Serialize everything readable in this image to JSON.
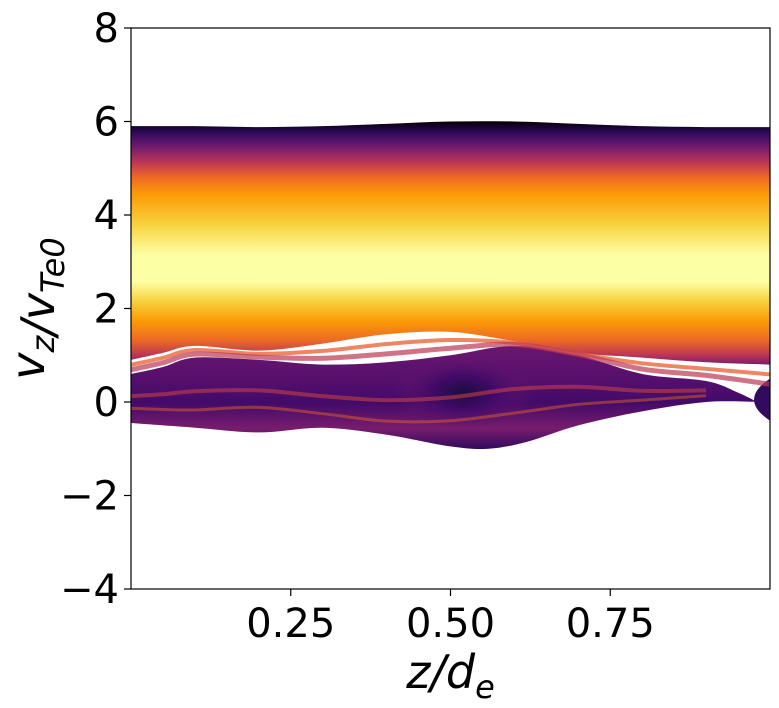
{
  "chart_data": {
    "type": "heatmap",
    "title": "",
    "xlabel": "z/d_e",
    "ylabel": "v_z/v_Te0",
    "xlim": [
      0.0,
      1.0
    ],
    "ylim": [
      -4,
      8
    ],
    "xticks": [
      0.25,
      0.5,
      0.75
    ],
    "xtick_labels": [
      "0.25",
      "0.50",
      "0.75"
    ],
    "yticks": [
      -4,
      -2,
      0,
      2,
      4,
      6,
      8
    ],
    "ytick_labels": [
      "−4",
      "−2",
      "0",
      "2",
      "4",
      "6",
      "8"
    ],
    "colormap": "inferno",
    "grid": false,
    "legend": "none",
    "colors": {
      "background": "#ffffff",
      "axis": "#000000"
    },
    "main_beam": {
      "center_vz": 3.2,
      "upper_edge_vz": [
        [
          0.0,
          5.9
        ],
        [
          0.1,
          5.9
        ],
        [
          0.2,
          5.88
        ],
        [
          0.3,
          5.9
        ],
        [
          0.4,
          5.95
        ],
        [
          0.5,
          6.0
        ],
        [
          0.6,
          6.0
        ],
        [
          0.7,
          5.95
        ],
        [
          0.8,
          5.9
        ],
        [
          0.9,
          5.88
        ],
        [
          1.0,
          5.88
        ]
      ],
      "lower_edge_vz": [
        [
          0.0,
          0.9
        ],
        [
          0.05,
          1.05
        ],
        [
          0.1,
          1.2
        ],
        [
          0.2,
          1.1
        ],
        [
          0.3,
          1.25
        ],
        [
          0.4,
          1.45
        ],
        [
          0.5,
          1.5
        ],
        [
          0.6,
          1.3
        ],
        [
          0.7,
          1.05
        ],
        [
          0.8,
          0.95
        ],
        [
          0.9,
          0.85
        ],
        [
          1.0,
          0.8
        ]
      ]
    },
    "cold_population": {
      "upper_edge_vz": [
        [
          0.0,
          0.6
        ],
        [
          0.05,
          0.75
        ],
        [
          0.1,
          0.95
        ],
        [
          0.2,
          0.9
        ],
        [
          0.3,
          0.8
        ],
        [
          0.4,
          0.85
        ],
        [
          0.5,
          1.0
        ],
        [
          0.6,
          1.2
        ],
        [
          0.7,
          1.0
        ],
        [
          0.8,
          0.6
        ],
        [
          0.9,
          0.45
        ],
        [
          0.95,
          0.2
        ],
        [
          0.98,
          0.0
        ]
      ],
      "lower_edge_vz": [
        [
          0.0,
          -0.45
        ],
        [
          0.1,
          -0.55
        ],
        [
          0.2,
          -0.65
        ],
        [
          0.3,
          -0.55
        ],
        [
          0.4,
          -0.7
        ],
        [
          0.5,
          -0.95
        ],
        [
          0.56,
          -1.0
        ],
        [
          0.62,
          -0.85
        ],
        [
          0.7,
          -0.5
        ],
        [
          0.8,
          -0.2
        ],
        [
          0.9,
          0.0
        ],
        [
          0.98,
          0.0
        ]
      ],
      "right_edge_blob": {
        "z_from": 0.95,
        "z_to": 1.0,
        "vz_from": -0.4,
        "vz_to": 0.5
      }
    },
    "vortex_center": {
      "z": 0.52,
      "vz": 0.2
    }
  }
}
